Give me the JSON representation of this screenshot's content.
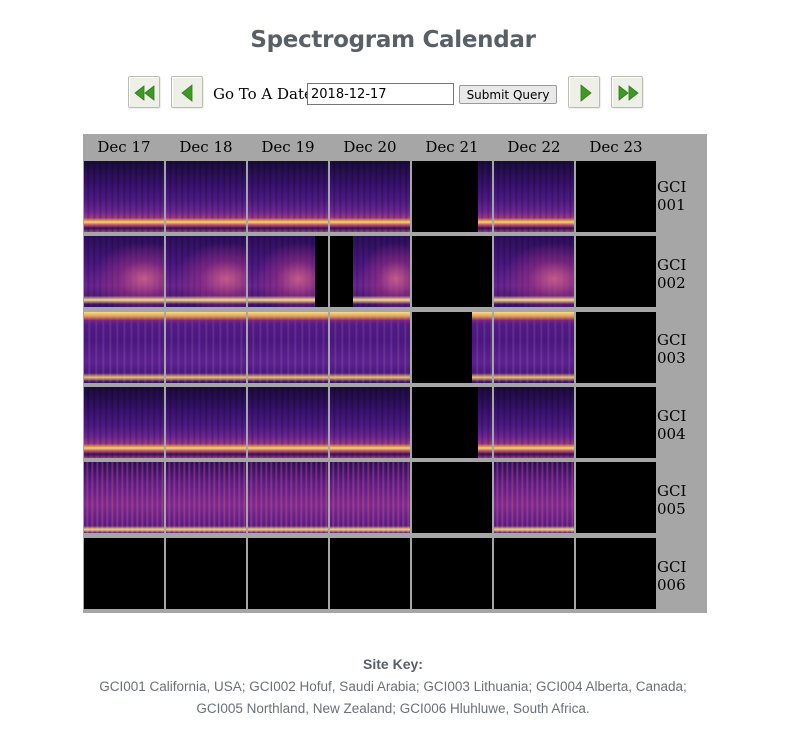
{
  "header": {
    "title": "Spectrogram Calendar"
  },
  "nav": {
    "first_icon": "double-left-arrow-icon",
    "prev_icon": "left-arrow-icon",
    "next_icon": "right-arrow-icon",
    "last_icon": "double-right-arrow-icon",
    "arrow_color": "#4a9a2a"
  },
  "date_form": {
    "label": "Go To A Date",
    "value": "2018-12-17",
    "submit_label": "Submit Query"
  },
  "calendar": {
    "days": [
      "Dec 17",
      "Dec 18",
      "Dec 19",
      "Dec 20",
      "Dec 21",
      "Dec 22",
      "Dec 23"
    ],
    "sites": [
      {
        "line1": "GCI",
        "line2": "001"
      },
      {
        "line1": "GCI",
        "line2": "002"
      },
      {
        "line1": "GCI",
        "line2": "003"
      },
      {
        "line1": "GCI",
        "line2": "004"
      },
      {
        "line1": "GCI",
        "line2": "005"
      },
      {
        "line1": "GCI",
        "line2": "006"
      }
    ]
  },
  "site_key": {
    "title": "Site Key:",
    "line1": "GCI001 California, USA;  GCI002 Hofuf, Saudi Arabia;  GCI003 Lithuania;  GCI004 Alberta, Canada;",
    "line2": "GCI005 Northland, New Zealand;  GCI006 Hluhluwe, South Africa."
  },
  "colors": {
    "title": "#595f66",
    "grid_bg": "#a6a6a6",
    "cell_empty": "#000000"
  }
}
